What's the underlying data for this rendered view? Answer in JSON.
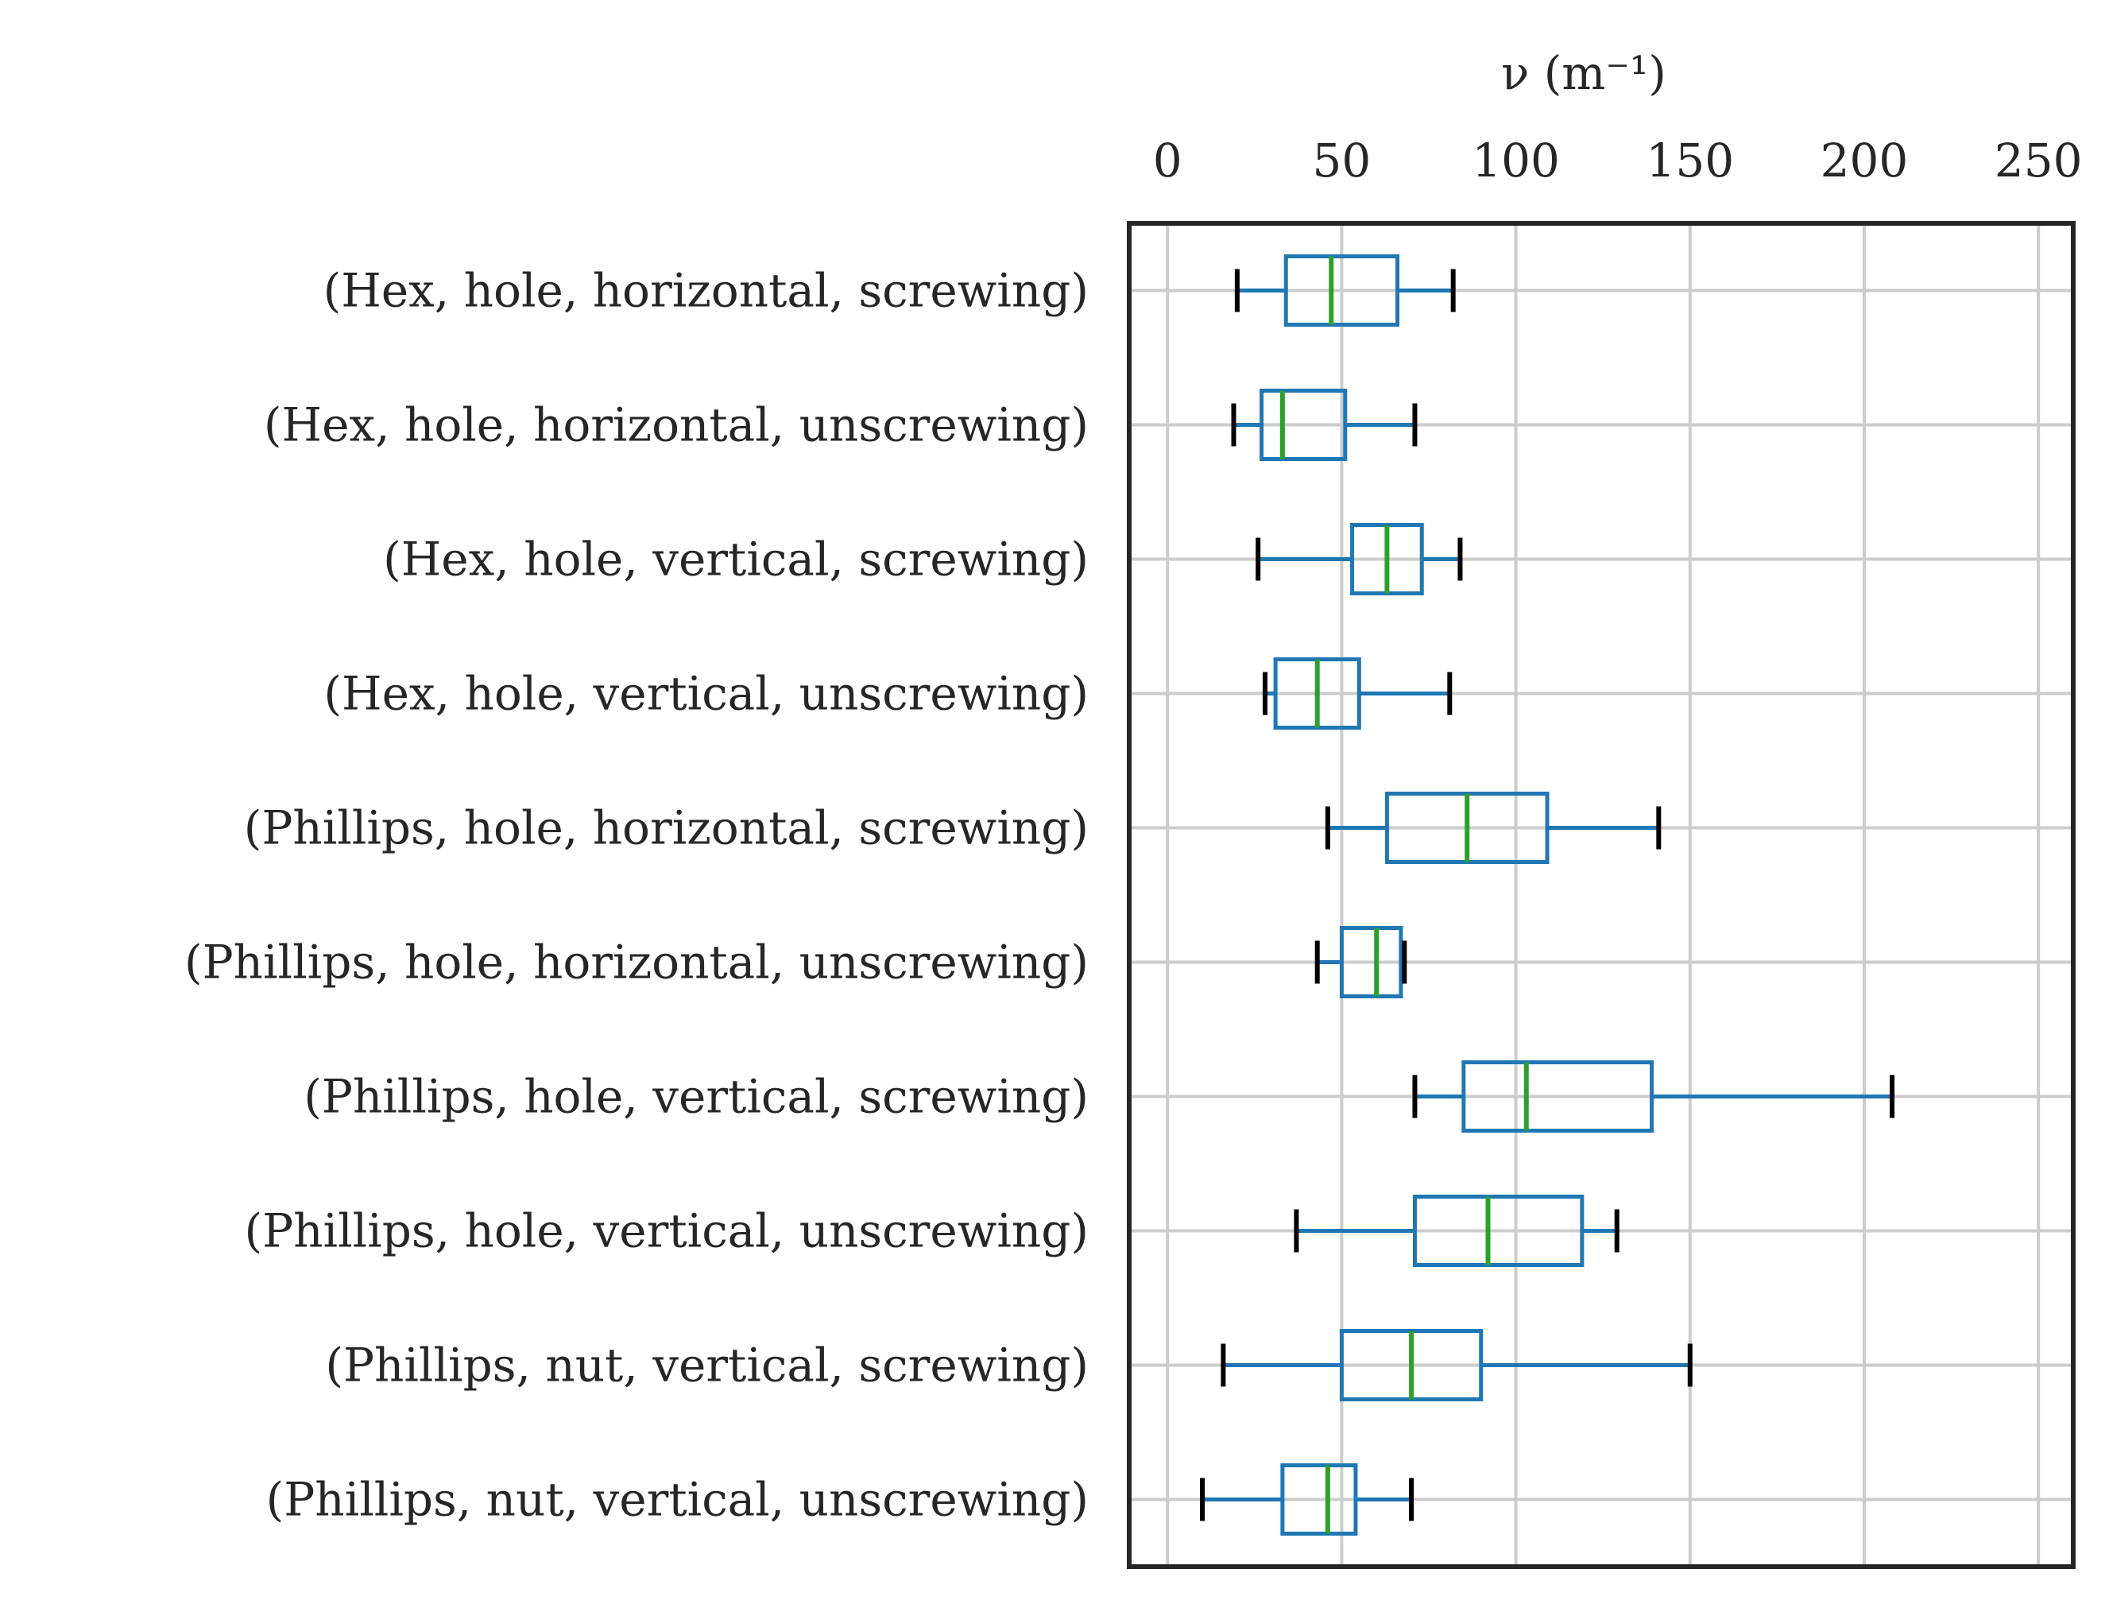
{
  "chart_data": {
    "type": "box",
    "orientation": "horizontal",
    "xlabel": "ν (m⁻¹)",
    "xaxis_position": "top",
    "xlim": [
      -11,
      260
    ],
    "xticks": [
      "0",
      "50",
      "100",
      "150",
      "200",
      "250"
    ],
    "xtick_values": [
      0,
      50,
      100,
      150,
      200,
      250
    ],
    "grid": true,
    "colors": {
      "box": "#1f77b4",
      "median": "#2ca02c",
      "cap": "#000000",
      "grid": "#cccccc",
      "frame": "#262626"
    },
    "series": [
      {
        "label": "(Hex, hole, horizontal, screwing)",
        "whislo": 20,
        "q1": 34,
        "median": 47,
        "q3": 66,
        "whishi": 82
      },
      {
        "label": "(Hex, hole, horizontal, unscrewing)",
        "whislo": 19,
        "q1": 27,
        "median": 33,
        "q3": 51,
        "whishi": 71
      },
      {
        "label": "(Hex, hole, vertical, screwing)",
        "whislo": 26,
        "q1": 53,
        "median": 63,
        "q3": 73,
        "whishi": 84
      },
      {
        "label": "(Hex, hole, vertical, unscrewing)",
        "whislo": 28,
        "q1": 31,
        "median": 43,
        "q3": 55,
        "whishi": 81
      },
      {
        "label": "(Phillips, hole, horizontal, screwing)",
        "whislo": 46,
        "q1": 63,
        "median": 86,
        "q3": 109,
        "whishi": 141
      },
      {
        "label": "(Phillips, hole, horizontal, unscrewing)",
        "whislo": 43,
        "q1": 50,
        "median": 60,
        "q3": 67,
        "whishi": 68
      },
      {
        "label": "(Phillips, hole, vertical, screwing)",
        "whislo": 71,
        "q1": 85,
        "median": 103,
        "q3": 139,
        "whishi": 208
      },
      {
        "label": "(Phillips, hole, vertical, unscrewing)",
        "whislo": 37,
        "q1": 71,
        "median": 92,
        "q3": 119,
        "whishi": 129
      },
      {
        "label": "(Phillips, nut, vertical, screwing)",
        "whislo": 16,
        "q1": 50,
        "median": 70,
        "q3": 90,
        "whishi": 150
      },
      {
        "label": "(Phillips, nut, vertical, unscrewing)",
        "whislo": 10,
        "q1": 33,
        "median": 46,
        "q3": 54,
        "whishi": 70
      }
    ]
  }
}
